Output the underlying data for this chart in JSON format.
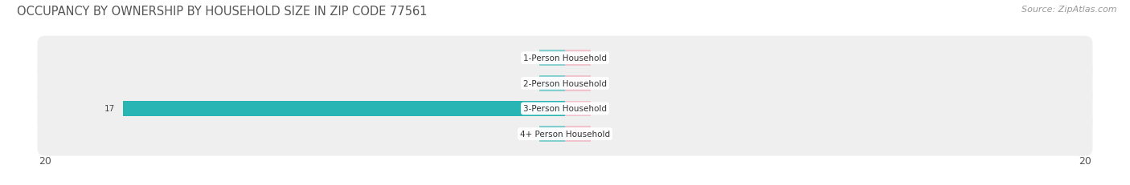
{
  "title": "OCCUPANCY BY OWNERSHIP BY HOUSEHOLD SIZE IN ZIP CODE 77561",
  "source": "Source: ZipAtlas.com",
  "categories": [
    "1-Person Household",
    "2-Person Household",
    "3-Person Household",
    "4+ Person Household"
  ],
  "owner_values": [
    0,
    0,
    17,
    0
  ],
  "renter_values": [
    0,
    0,
    0,
    0
  ],
  "owner_color": "#2ab5b5",
  "renter_color": "#f4a0b0",
  "row_bg_color": "#efefef",
  "xlim": [
    -20,
    20
  ],
  "bar_height": 0.62,
  "title_fontsize": 10.5,
  "source_fontsize": 8,
  "label_fontsize": 7.5,
  "tick_fontsize": 9,
  "legend_fontsize": 8.5,
  "min_stub": 1.0,
  "background_color": "#ffffff"
}
